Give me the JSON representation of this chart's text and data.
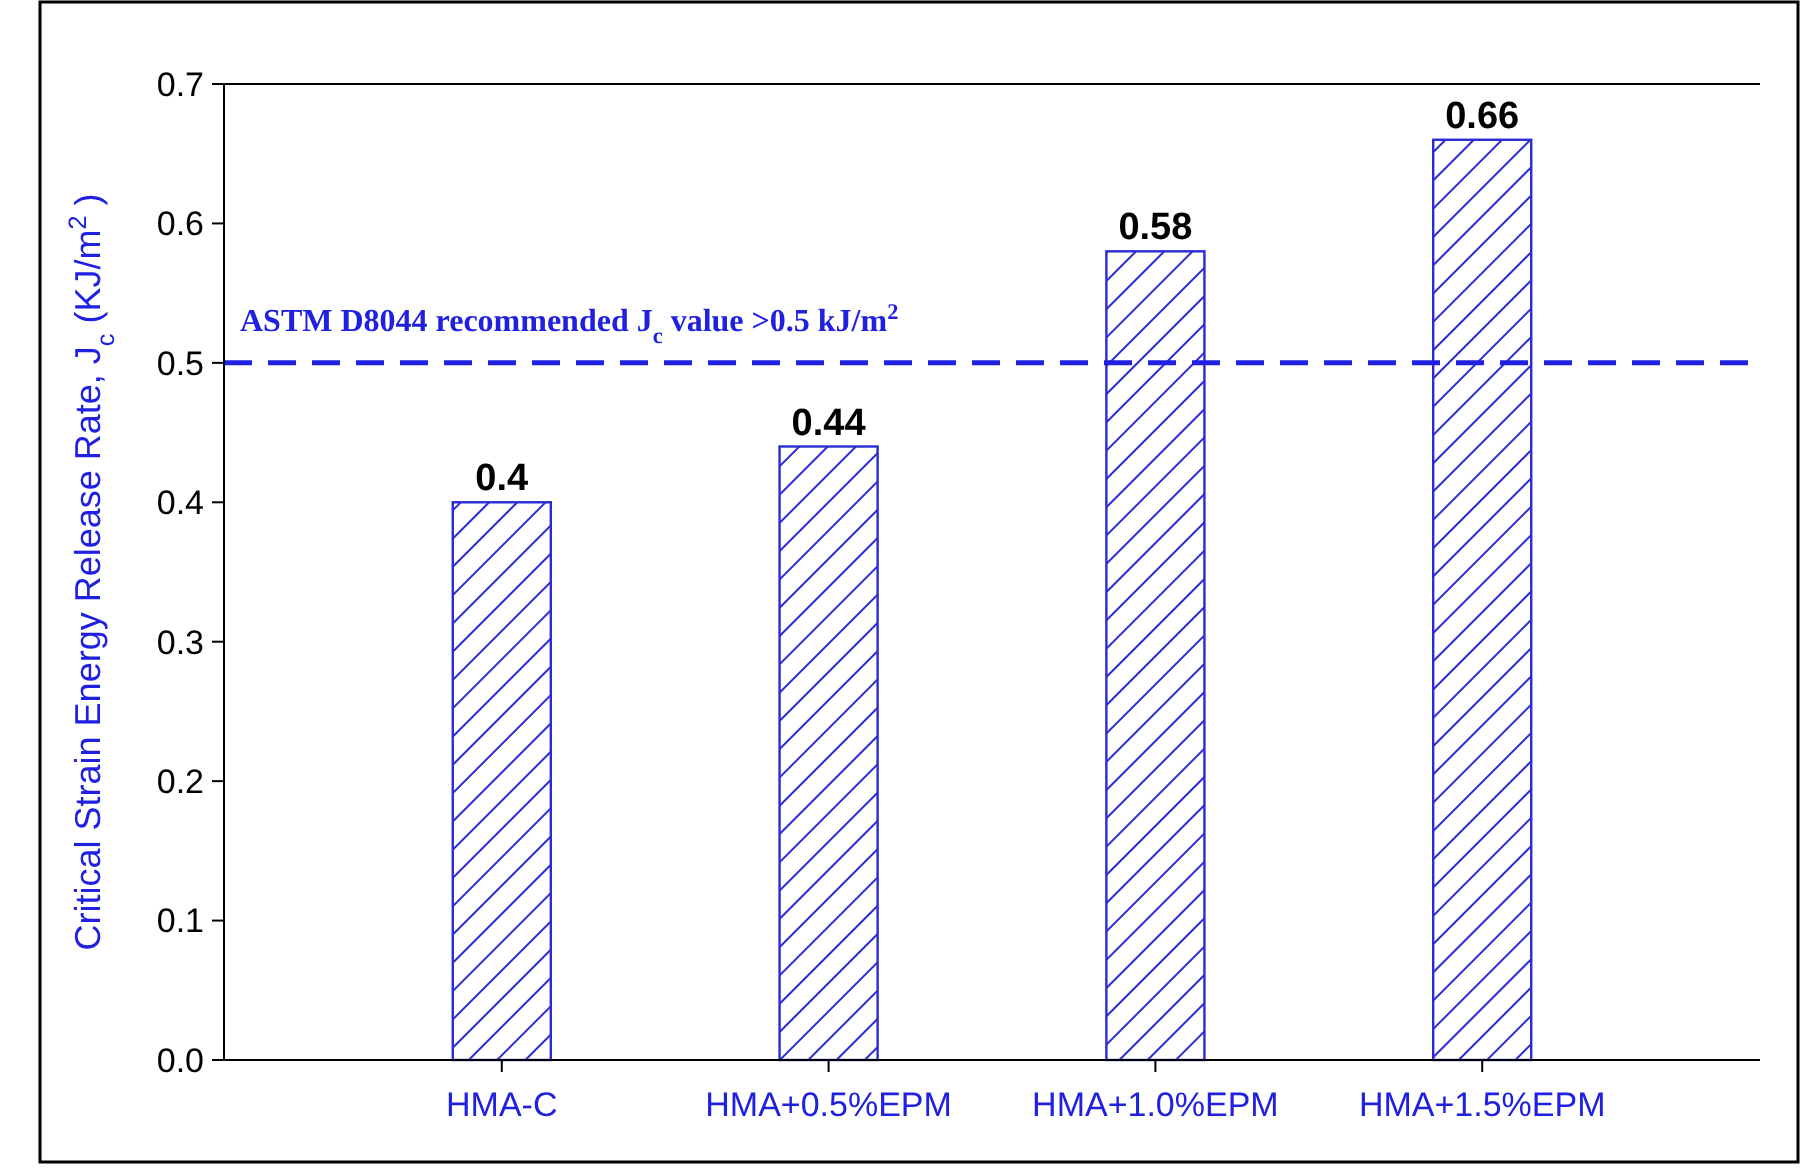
{
  "chart_data": {
    "type": "bar",
    "ylabel": "Critical Strain Energy Release Rate, J$_{c}$ (KJ/m$^{2}$ )",
    "categories": [
      "HMA-C",
      "HMA+0.5%EPM",
      "HMA+1.0%EPM",
      "HMA+1.5%EPM"
    ],
    "values": [
      0.4,
      0.44,
      0.58,
      0.66
    ],
    "color": "#2b2bd6",
    "data_labels": true,
    "ylim": [
      0,
      0.7
    ],
    "yticks": [
      {
        "value": 0,
        "label": "0.0"
      },
      {
        "value": 0.1,
        "label": "0.1"
      },
      {
        "value": 0.2,
        "label": "0.2"
      },
      {
        "value": 0.3,
        "label": "0.3"
      },
      {
        "value": 0.4,
        "label": "0.4"
      },
      {
        "value": 0.5,
        "label": "0.5"
      },
      {
        "value": 0.6,
        "label": "0.6"
      },
      {
        "value": 0.7,
        "label": "0.7"
      }
    ],
    "ref_lines": [
      {
        "axis": "y",
        "value": 0.5,
        "label": "ASTM D8044 recommended J$_{c}$ value >0.5 kJ/m$^{2}$",
        "color": "#2020e0",
        "line_style": "dashed"
      }
    ],
    "grid": false
  }
}
